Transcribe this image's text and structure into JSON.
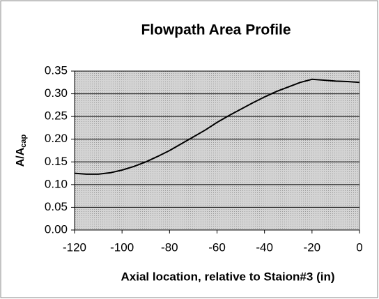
{
  "chart_data": {
    "type": "line",
    "title": "Flowpath Area Profile",
    "xlabel": "Axial location, relative to Staion#3 (in)",
    "ylabel": "A/A",
    "ylabel_subscript": "cap",
    "x": [
      -120,
      -115,
      -110,
      -105,
      -100,
      -95,
      -90,
      -85,
      -80,
      -75,
      -70,
      -65,
      -60,
      -55,
      -50,
      -45,
      -40,
      -35,
      -30,
      -25,
      -20,
      -15,
      -10,
      -5,
      0
    ],
    "series": [
      {
        "color": "#000000",
        "values": [
          0.125,
          0.123,
          0.123,
          0.126,
          0.132,
          0.14,
          0.15,
          0.162,
          0.175,
          0.19,
          0.205,
          0.22,
          0.237,
          0.252,
          0.266,
          0.28,
          0.293,
          0.305,
          0.315,
          0.325,
          0.332,
          0.33,
          0.328,
          0.327,
          0.325
        ]
      }
    ],
    "xlim": [
      -120,
      0
    ],
    "xticks": [
      -120,
      -100,
      -80,
      -60,
      -40,
      -20,
      0
    ],
    "ylim": [
      0,
      0.35
    ],
    "yticks": [
      {
        "value": 0,
        "label": "0.00"
      },
      0.05,
      {
        "value": 0.1,
        "label": "0.10"
      },
      0.15,
      {
        "value": 0.2,
        "label": "0.20"
      },
      0.25,
      {
        "value": 0.3,
        "label": "0.30"
      },
      0.35
    ],
    "grid": true
  }
}
